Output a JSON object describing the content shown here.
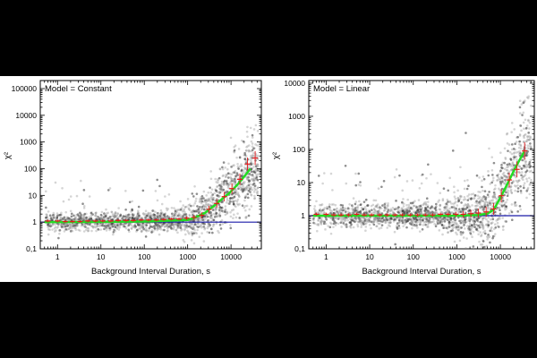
{
  "chart_data": [
    {
      "type": "scatter",
      "title": "",
      "annotation": "Model = Constant",
      "xlabel": "Background Interval Duration, s",
      "ylabel": "χ²",
      "x_scale": "log",
      "y_scale": "log",
      "xlim": [
        0.4,
        50000
      ],
      "ylim": [
        0.1,
        200000
      ],
      "x_ticks": [
        1,
        10,
        100,
        1000,
        10000
      ],
      "x_tick_labels": [
        "1",
        "10",
        "100",
        "1000",
        "10000"
      ],
      "y_ticks": [
        0.1,
        1,
        10,
        100,
        1000,
        10000,
        100000
      ],
      "y_tick_labels": [
        "0,1",
        "1",
        "10",
        "100",
        "1000",
        "10000",
        "100000"
      ],
      "reference_line": {
        "y": 1,
        "color": "#1a1aa8"
      },
      "colors": {
        "points": "#888888",
        "binned": "#e41a1c",
        "fit": "#22dd22"
      },
      "binned_means": {
        "x": [
          0.6,
          1,
          1.5,
          2.2,
          3.3,
          5,
          7.5,
          11,
          17,
          25,
          38,
          56,
          85,
          125,
          190,
          280,
          420,
          630,
          950,
          1400,
          2100,
          3100,
          4700,
          7000,
          10500,
          16000,
          24000,
          36000
        ],
        "y": [
          1.1,
          1.1,
          1.05,
          1.05,
          1.05,
          1.1,
          1.1,
          1.1,
          1.1,
          1.15,
          1.15,
          1.15,
          1.2,
          1.2,
          1.2,
          1.25,
          1.3,
          1.3,
          1.4,
          1.5,
          1.8,
          3,
          5,
          9,
          18,
          40,
          150,
          250
        ]
      },
      "fit_curve": {
        "x": [
          0.5,
          1,
          10,
          100,
          1000,
          1500,
          2500,
          4000,
          6000,
          9000,
          14000,
          20000,
          28000
        ],
        "y": [
          1,
          1,
          1.02,
          1.05,
          1.2,
          1.5,
          2.2,
          4,
          7,
          12,
          25,
          50,
          100
        ]
      }
    },
    {
      "type": "scatter",
      "title": "",
      "annotation": "Model = Linear",
      "xlabel": "Background Interval Duration, s",
      "ylabel": "χ²",
      "x_scale": "log",
      "y_scale": "log",
      "xlim": [
        0.4,
        60000
      ],
      "ylim": [
        0.1,
        12000
      ],
      "x_ticks": [
        1,
        10,
        100,
        1000,
        10000
      ],
      "x_tick_labels": [
        "1",
        "10",
        "100",
        "1000",
        "10000"
      ],
      "y_ticks": [
        0.1,
        1,
        10,
        100,
        1000,
        10000
      ],
      "y_tick_labels": [
        "0,1",
        "1",
        "10",
        "100",
        "1000",
        "10000"
      ],
      "reference_line": {
        "y": 1,
        "color": "#1a1aa8"
      },
      "colors": {
        "points": "#888888",
        "binned": "#e41a1c",
        "fit": "#22dd22"
      },
      "binned_means": {
        "x": [
          0.6,
          1,
          1.5,
          2.2,
          3.3,
          5,
          7.5,
          11,
          17,
          25,
          38,
          56,
          85,
          125,
          190,
          280,
          420,
          630,
          950,
          1400,
          2100,
          3100,
          4700,
          7000,
          10500,
          16000,
          24000,
          36000
        ],
        "y": [
          1.1,
          1.1,
          1.05,
          1.05,
          1.05,
          1.1,
          1.05,
          1.05,
          1.05,
          1.05,
          1.05,
          1.05,
          1.05,
          1.05,
          1.05,
          1.05,
          1.1,
          1.1,
          1.1,
          1.1,
          1.15,
          1.2,
          1.3,
          1.6,
          4,
          12,
          25,
          90
        ]
      },
      "fit_curve": {
        "x": [
          0.5,
          1,
          10,
          100,
          1000,
          3000,
          5000,
          7000,
          10000,
          15000,
          22000,
          35000
        ],
        "y": [
          1,
          1,
          1,
          1,
          1,
          1.05,
          1.15,
          1.5,
          3.5,
          10,
          28,
          85
        ]
      }
    }
  ]
}
